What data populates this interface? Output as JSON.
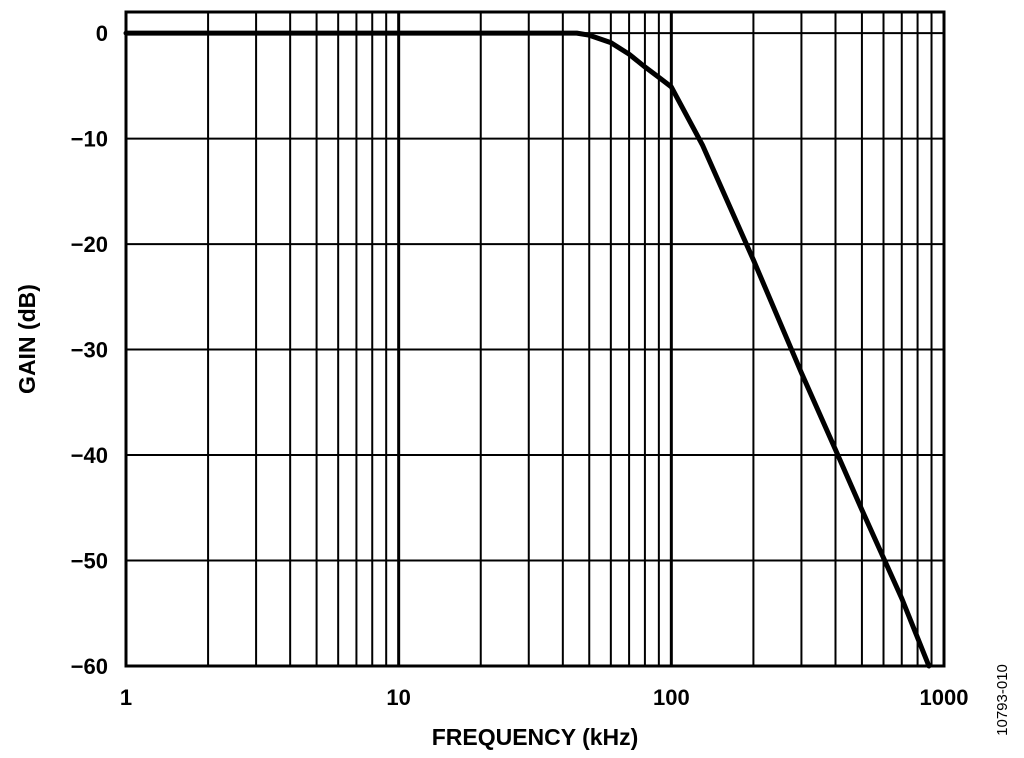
{
  "chart_data": {
    "type": "line",
    "title": "",
    "xlabel": "FREQUENCY (kHz)",
    "ylabel": "GAIN (dB)",
    "x_scale": "log",
    "xlim": [
      1,
      1000
    ],
    "ylim": [
      -60,
      2
    ],
    "grid": true,
    "x_tick_labels": [
      "1",
      "10",
      "100",
      "1000"
    ],
    "x_tick_values": [
      1,
      10,
      100,
      1000
    ],
    "y_tick_labels": [
      "0",
      "−10",
      "−20",
      "−30",
      "−40",
      "−50",
      "−60"
    ],
    "y_tick_values": [
      0,
      -10,
      -20,
      -30,
      -40,
      -50,
      -60
    ],
    "figure_id": "10793-010",
    "series": [
      {
        "color": "#000000",
        "x": [
          1,
          10,
          30,
          45,
          50,
          60,
          70,
          80,
          90,
          100,
          130,
          200,
          300,
          400,
          500,
          700,
          880
        ],
        "y": [
          0,
          0,
          0,
          0,
          -0.2,
          -0.9,
          -2.0,
          -3.2,
          -4.2,
          -5.1,
          -10.6,
          -21.5,
          -32.2,
          -39.5,
          -45.2,
          -53.6,
          -60
        ]
      }
    ]
  }
}
